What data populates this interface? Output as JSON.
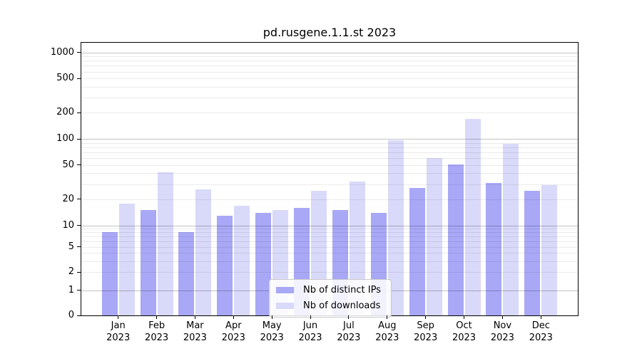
{
  "title": "pd.rusgene.1.1.st 2023",
  "chart_data": {
    "type": "bar",
    "title": "pd.rusgene.1.1.st 2023",
    "categories": [
      {
        "month": "Jan",
        "year": "2023"
      },
      {
        "month": "Feb",
        "year": "2023"
      },
      {
        "month": "Mar",
        "year": "2023"
      },
      {
        "month": "Apr",
        "year": "2023"
      },
      {
        "month": "May",
        "year": "2023"
      },
      {
        "month": "Jun",
        "year": "2023"
      },
      {
        "month": "Jul",
        "year": "2023"
      },
      {
        "month": "Aug",
        "year": "2023"
      },
      {
        "month": "Sep",
        "year": "2023"
      },
      {
        "month": "Oct",
        "year": "2023"
      },
      {
        "month": "Nov",
        "year": "2023"
      },
      {
        "month": "Dec",
        "year": "2023"
      }
    ],
    "series": [
      {
        "name": "Nb of distinct IPs",
        "color": "#a8a8f6",
        "values": [
          8,
          15,
          8,
          13,
          14,
          16,
          15,
          14,
          27,
          51,
          31,
          25
        ]
      },
      {
        "name": "Nb of downloads",
        "color": "#d9d9f9",
        "values": [
          18,
          41,
          26,
          17,
          15,
          25,
          32,
          96,
          60,
          170,
          88,
          29
        ]
      }
    ],
    "y_ticks": [
      0,
      1,
      2,
      5,
      10,
      20,
      50,
      100,
      200,
      500,
      1000
    ],
    "y_scale": "log125-with-zero-baseline",
    "ylim": [
      0,
      1300
    ],
    "grid": true,
    "legend_position": "inside-bottom-center"
  }
}
